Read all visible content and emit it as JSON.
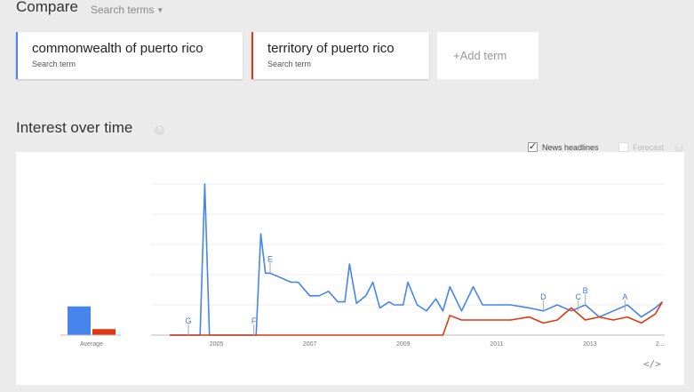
{
  "header": {
    "title": "Compare",
    "search_terms_label": "Search terms"
  },
  "terms": [
    {
      "label": "commonwealth of puerto rico",
      "sub": "Search term",
      "color": "#4684ee"
    },
    {
      "label": "territory of puerto rico",
      "sub": "Search term",
      "color": "#dc3912"
    }
  ],
  "add_term": {
    "label": "+Add term"
  },
  "interest": {
    "title": "Interest over time",
    "news_headlines_label": "News headlines",
    "forecast_label": "Forecast"
  },
  "icons": {
    "help": "help-icon",
    "embed": "embed-icon",
    "caret": "caret-down-icon"
  },
  "chart_data": {
    "type": "line",
    "x_tick_labels": [
      "2005",
      "2007",
      "2009",
      "2011",
      "2013",
      "2..."
    ],
    "average_label": "Average",
    "averages": [
      19,
      4
    ],
    "ylim": [
      0,
      100
    ],
    "grid": true,
    "annotations": [
      "G",
      "F",
      "E",
      "D",
      "C",
      "B",
      "A"
    ],
    "x": [
      2004.0,
      2004.5,
      2004.65,
      2004.75,
      2004.85,
      2004.95,
      2005.5,
      2005.85,
      2005.95,
      2006.05,
      2006.15,
      2006.3,
      2006.6,
      2006.75,
      2007.0,
      2007.2,
      2007.4,
      2007.6,
      2007.75,
      2007.85,
      2008.0,
      2008.2,
      2008.35,
      2008.5,
      2008.7,
      2008.8,
      2009.0,
      2009.1,
      2009.3,
      2009.5,
      2009.7,
      2009.85,
      2010.0,
      2010.25,
      2010.5,
      2010.7,
      2011.0,
      2011.3,
      2011.7,
      2012.0,
      2012.3,
      2012.6,
      2012.9,
      2013.2,
      2013.5,
      2013.8,
      2014.1,
      2014.4,
      2014.55
    ],
    "series": [
      {
        "name": "commonwealth of puerto rico",
        "color": "#4684ee",
        "values": [
          0,
          0,
          0,
          100,
          0,
          0,
          0,
          0,
          67,
          41,
          41,
          39,
          35,
          35,
          26,
          26,
          29,
          22,
          22,
          47,
          21,
          26,
          35,
          18,
          22,
          20,
          20,
          35,
          20,
          16,
          24,
          16,
          32,
          16,
          32,
          20,
          20,
          20,
          18,
          16,
          20,
          16,
          20,
          12,
          16,
          20,
          12,
          18,
          22
        ]
      },
      {
        "name": "territory of puerto rico",
        "color": "#dc3912",
        "values": [
          0,
          0,
          0,
          0,
          0,
          0,
          0,
          0,
          0,
          0,
          0,
          0,
          0,
          0,
          0,
          0,
          0,
          0,
          0,
          0,
          0,
          0,
          0,
          0,
          0,
          0,
          0,
          0,
          0,
          0,
          0,
          0,
          13,
          10,
          10,
          10,
          10,
          10,
          12,
          8,
          10,
          18,
          10,
          12,
          10,
          12,
          8,
          14,
          22
        ]
      }
    ]
  }
}
